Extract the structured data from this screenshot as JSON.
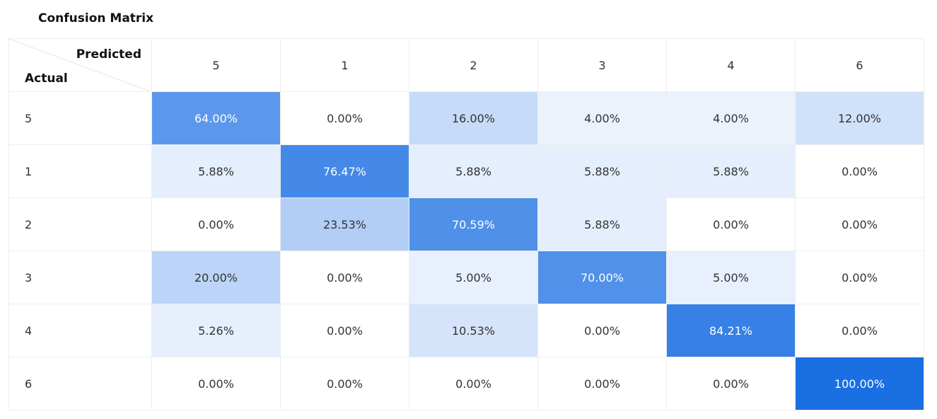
{
  "title": "Confusion Matrix",
  "axis": {
    "predicted_label": "Predicted",
    "actual_label": "Actual"
  },
  "chart_data": {
    "type": "heatmap",
    "title": "Confusion Matrix",
    "xlabel": "Predicted",
    "ylabel": "Actual",
    "columns": [
      "5",
      "1",
      "2",
      "3",
      "4",
      "6"
    ],
    "rows": [
      "5",
      "1",
      "2",
      "3",
      "4",
      "6"
    ],
    "values": [
      [
        64.0,
        0.0,
        16.0,
        4.0,
        4.0,
        12.0
      ],
      [
        5.88,
        76.47,
        5.88,
        5.88,
        5.88,
        0.0
      ],
      [
        0.0,
        23.53,
        70.59,
        5.88,
        0.0,
        0.0
      ],
      [
        20.0,
        0.0,
        5.0,
        70.0,
        5.0,
        0.0
      ],
      [
        5.26,
        0.0,
        10.53,
        0.0,
        84.21,
        0.0
      ],
      [
        0.0,
        0.0,
        0.0,
        0.0,
        0.0,
        100.0
      ]
    ],
    "value_format": "percent, 2 decimals",
    "colors": {
      "scale_low": "#ffffff",
      "scale_high": "#1a6fe3",
      "grid": "#eeeeee"
    }
  }
}
